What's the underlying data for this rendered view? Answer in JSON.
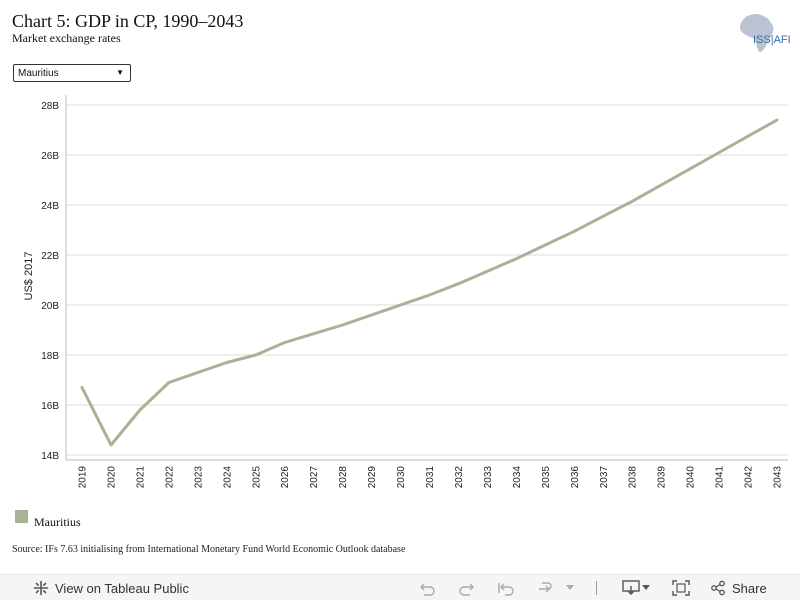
{
  "header": {
    "title": "Chart 5: GDP in CP, 1990–2043",
    "subtitle": "Market exchange rates",
    "logo_text": "ISS|AFI"
  },
  "filter": {
    "selected": "Mauritius"
  },
  "colors": {
    "series": "#a8b296",
    "grid": "#dcdcdc",
    "axis": "#bbbbbb"
  },
  "chart_data": {
    "type": "line",
    "title": "Chart 5: GDP in CP, 1990–2043",
    "subtitle": "Market exchange rates",
    "ylabel": "US$ 2017",
    "xlabel": "",
    "ylim": [
      13.8,
      28.4
    ],
    "y_ticks": [
      14,
      16,
      18,
      20,
      22,
      24,
      26,
      28
    ],
    "y_tick_labels": [
      "14B",
      "16B",
      "18B",
      "20B",
      "22B",
      "24B",
      "26B",
      "28B"
    ],
    "x": [
      2019,
      2020,
      2021,
      2022,
      2023,
      2024,
      2025,
      2026,
      2027,
      2028,
      2029,
      2030,
      2031,
      2032,
      2033,
      2034,
      2035,
      2036,
      2037,
      2038,
      2039,
      2040,
      2041,
      2042,
      2043
    ],
    "series": [
      {
        "name": "Mauritius",
        "values": [
          16.7,
          14.4,
          15.8,
          16.9,
          17.3,
          17.7,
          18.0,
          18.5,
          18.85,
          19.2,
          19.6,
          20.0,
          20.4,
          20.85,
          21.35,
          21.85,
          22.4,
          22.95,
          23.55,
          24.15,
          24.8,
          25.45,
          26.1,
          26.75,
          27.4
        ]
      }
    ],
    "grid": true,
    "legend": "bottom-left"
  },
  "legend": {
    "label": "Mauritius"
  },
  "source": "Source: IFs 7.63 initialising from International Monetary Fund World Economic Outlook database",
  "toolbar": {
    "view_label": "View on Tableau Public",
    "share_label": "Share"
  }
}
